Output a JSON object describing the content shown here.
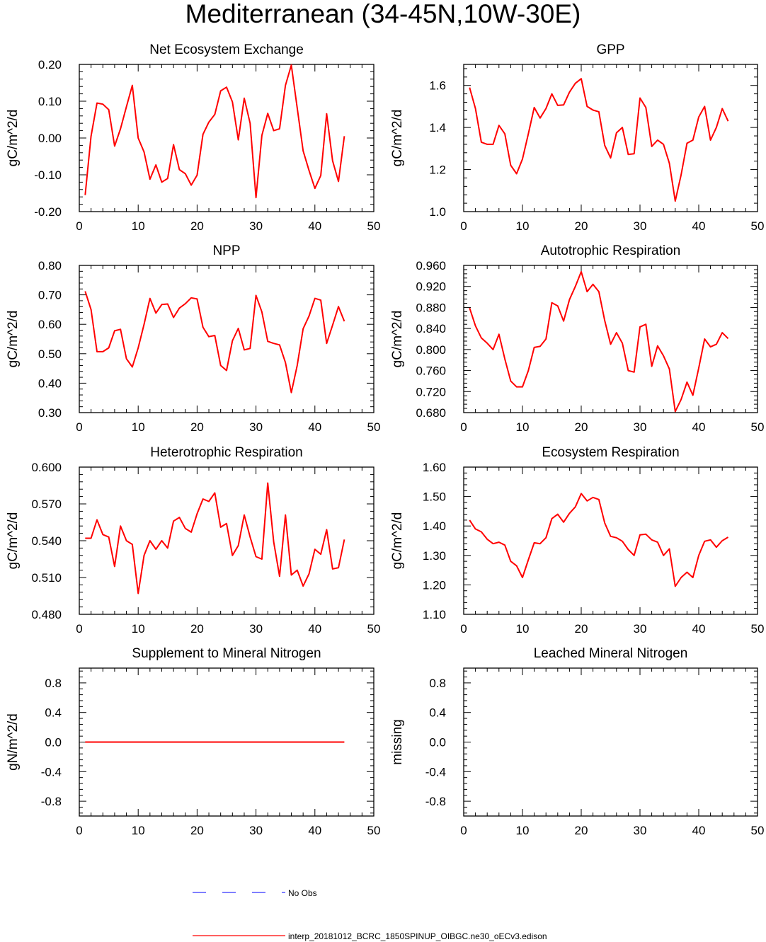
{
  "figure": {
    "title": "Mediterranean (34-45N,10W-30E)"
  },
  "legend": {
    "items": [
      {
        "label": "No Obs",
        "color": "#3333ff",
        "style": "dashed"
      },
      {
        "label": "interp_20181012_BCRC_1850SPINUP_OIBGC.ne30_oECv3.edison",
        "color": "#ff0000",
        "style": "solid"
      }
    ]
  },
  "chart_data": [
    {
      "type": "line",
      "title": "Net Ecosystem Exchange",
      "ylabel": "gC/m^2/d",
      "xlim": [
        0,
        50
      ],
      "ylim": [
        -0.2,
        0.2
      ],
      "xticks": [
        0,
        10,
        20,
        30,
        40,
        50
      ],
      "yticks": [
        -0.2,
        -0.1,
        0.0,
        0.1,
        0.2
      ],
      "ytick_labels": [
        "-0.20",
        "-0.10",
        "0.00",
        "0.10",
        "0.20"
      ],
      "series": [
        {
          "color": "#ff0000",
          "x": [
            1,
            2,
            3,
            4,
            5,
            6,
            7,
            8,
            9,
            10,
            11,
            12,
            13,
            14,
            15,
            16,
            17,
            18,
            19,
            20,
            21,
            22,
            23,
            24,
            25,
            26,
            27,
            28,
            29,
            30,
            31,
            32,
            33,
            34,
            35,
            36,
            37,
            38,
            39,
            40,
            41,
            42,
            43,
            44,
            45
          ],
          "y": [
            -0.155,
            0.005,
            0.095,
            0.092,
            0.077,
            -0.022,
            0.025,
            0.085,
            0.143,
            0.0,
            -0.038,
            -0.112,
            -0.073,
            -0.12,
            -0.11,
            -0.018,
            -0.086,
            -0.097,
            -0.128,
            -0.101,
            0.01,
            0.043,
            0.064,
            0.128,
            0.138,
            0.098,
            -0.005,
            0.108,
            0.04,
            -0.162,
            0.007,
            0.067,
            0.02,
            0.025,
            0.143,
            0.198,
            0.082,
            -0.035,
            -0.088,
            -0.137,
            -0.102,
            0.066,
            -0.062,
            -0.118,
            0.005
          ]
        }
      ]
    },
    {
      "type": "line",
      "title": "GPP",
      "ylabel": "gC/m^2/d",
      "xlim": [
        0,
        50
      ],
      "ylim": [
        1.0,
        1.7
      ],
      "xticks": [
        0,
        10,
        20,
        30,
        40,
        50
      ],
      "yticks": [
        1.0,
        1.2,
        1.4,
        1.6
      ],
      "ytick_labels": [
        "1.0",
        "1.2",
        "1.4",
        "1.6"
      ],
      "series": [
        {
          "color": "#ff0000",
          "x": [
            1,
            2,
            3,
            4,
            5,
            6,
            7,
            8,
            9,
            10,
            11,
            12,
            13,
            14,
            15,
            16,
            17,
            18,
            19,
            20,
            21,
            22,
            23,
            24,
            25,
            26,
            27,
            28,
            29,
            30,
            31,
            32,
            33,
            34,
            35,
            36,
            37,
            38,
            39,
            40,
            41,
            42,
            43,
            44,
            45
          ],
          "y": [
            1.59,
            1.49,
            1.33,
            1.32,
            1.32,
            1.41,
            1.37,
            1.22,
            1.18,
            1.25,
            1.37,
            1.495,
            1.445,
            1.49,
            1.56,
            1.505,
            1.507,
            1.568,
            1.61,
            1.632,
            1.5,
            1.483,
            1.475,
            1.315,
            1.255,
            1.375,
            1.4,
            1.272,
            1.275,
            1.54,
            1.495,
            1.31,
            1.34,
            1.32,
            1.23,
            1.05,
            1.175,
            1.325,
            1.34,
            1.45,
            1.5,
            1.34,
            1.4,
            1.49,
            1.43
          ]
        }
      ]
    },
    {
      "type": "line",
      "title": "NPP",
      "ylabel": "gC/m^2/d",
      "xlim": [
        0,
        50
      ],
      "ylim": [
        0.3,
        0.8
      ],
      "xticks": [
        0,
        10,
        20,
        30,
        40,
        50
      ],
      "yticks": [
        0.3,
        0.4,
        0.5,
        0.6,
        0.7,
        0.8
      ],
      "ytick_labels": [
        "0.30",
        "0.40",
        "0.50",
        "0.60",
        "0.70",
        "0.80"
      ],
      "series": [
        {
          "color": "#ff0000",
          "x": [
            1,
            2,
            3,
            4,
            5,
            6,
            7,
            8,
            9,
            10,
            11,
            12,
            13,
            14,
            15,
            16,
            17,
            18,
            19,
            20,
            21,
            22,
            23,
            24,
            25,
            26,
            27,
            28,
            29,
            30,
            31,
            32,
            33,
            34,
            35,
            36,
            37,
            38,
            39,
            40,
            41,
            42,
            43,
            44,
            45
          ],
          "y": [
            0.712,
            0.65,
            0.507,
            0.507,
            0.52,
            0.578,
            0.583,
            0.483,
            0.455,
            0.52,
            0.6,
            0.688,
            0.638,
            0.667,
            0.669,
            0.623,
            0.655,
            0.67,
            0.69,
            0.686,
            0.59,
            0.558,
            0.562,
            0.46,
            0.443,
            0.544,
            0.586,
            0.513,
            0.518,
            0.698,
            0.642,
            0.542,
            0.535,
            0.53,
            0.47,
            0.368,
            0.46,
            0.585,
            0.628,
            0.688,
            0.682,
            0.535,
            0.597,
            0.66,
            0.61
          ]
        }
      ]
    },
    {
      "type": "line",
      "title": "Autotrophic Respiration",
      "ylabel": "gC/m^2/d",
      "xlim": [
        0,
        50
      ],
      "ylim": [
        0.68,
        0.96
      ],
      "xticks": [
        0,
        10,
        20,
        30,
        40,
        50
      ],
      "yticks": [
        0.68,
        0.72,
        0.76,
        0.8,
        0.84,
        0.88,
        0.92,
        0.96
      ],
      "ytick_labels": [
        "0.680",
        "0.720",
        "0.760",
        "0.800",
        "0.840",
        "0.880",
        "0.920",
        "0.960"
      ],
      "series": [
        {
          "color": "#ff0000",
          "x": [
            1,
            2,
            3,
            4,
            5,
            6,
            7,
            8,
            9,
            10,
            11,
            12,
            13,
            14,
            15,
            16,
            17,
            18,
            19,
            20,
            21,
            22,
            23,
            24,
            25,
            26,
            27,
            28,
            29,
            30,
            31,
            32,
            33,
            34,
            35,
            36,
            37,
            38,
            39,
            40,
            41,
            42,
            43,
            44,
            45
          ],
          "y": [
            0.879,
            0.845,
            0.822,
            0.812,
            0.8,
            0.829,
            0.782,
            0.74,
            0.729,
            0.729,
            0.76,
            0.804,
            0.806,
            0.82,
            0.889,
            0.883,
            0.854,
            0.895,
            0.92,
            0.948,
            0.91,
            0.924,
            0.91,
            0.855,
            0.81,
            0.832,
            0.812,
            0.76,
            0.757,
            0.843,
            0.848,
            0.768,
            0.807,
            0.788,
            0.763,
            0.682,
            0.705,
            0.738,
            0.713,
            0.765,
            0.82,
            0.805,
            0.81,
            0.832,
            0.821
          ]
        }
      ]
    },
    {
      "type": "line",
      "title": "Heterotrophic Respiration",
      "ylabel": "gC/m^2/d",
      "xlim": [
        0,
        50
      ],
      "ylim": [
        0.48,
        0.6
      ],
      "xticks": [
        0,
        10,
        20,
        30,
        40,
        50
      ],
      "yticks": [
        0.48,
        0.51,
        0.54,
        0.57,
        0.6
      ],
      "ytick_labels": [
        "0.480",
        "0.510",
        "0.540",
        "0.570",
        "0.600"
      ],
      "series": [
        {
          "color": "#ff0000",
          "x": [
            1,
            2,
            3,
            4,
            5,
            6,
            7,
            8,
            9,
            10,
            11,
            12,
            13,
            14,
            15,
            16,
            17,
            18,
            19,
            20,
            21,
            22,
            23,
            24,
            25,
            26,
            27,
            28,
            29,
            30,
            31,
            32,
            33,
            34,
            35,
            36,
            37,
            38,
            39,
            40,
            41,
            42,
            43,
            44,
            45
          ],
          "y": [
            0.542,
            0.542,
            0.557,
            0.545,
            0.543,
            0.519,
            0.552,
            0.54,
            0.537,
            0.497,
            0.528,
            0.54,
            0.533,
            0.54,
            0.534,
            0.556,
            0.559,
            0.55,
            0.547,
            0.562,
            0.574,
            0.572,
            0.579,
            0.551,
            0.554,
            0.528,
            0.536,
            0.561,
            0.543,
            0.527,
            0.525,
            0.587,
            0.539,
            0.511,
            0.561,
            0.512,
            0.516,
            0.503,
            0.513,
            0.533,
            0.529,
            0.549,
            0.517,
            0.518,
            0.541
          ]
        }
      ]
    },
    {
      "type": "line",
      "title": "Ecosystem Respiration",
      "ylabel": "gC/m^2/d",
      "xlim": [
        0,
        50
      ],
      "ylim": [
        1.1,
        1.6
      ],
      "xticks": [
        0,
        10,
        20,
        30,
        40,
        50
      ],
      "yticks": [
        1.1,
        1.2,
        1.3,
        1.4,
        1.5,
        1.6
      ],
      "ytick_labels": [
        "1.10",
        "1.20",
        "1.30",
        "1.40",
        "1.50",
        "1.60"
      ],
      "series": [
        {
          "color": "#ff0000",
          "x": [
            1,
            2,
            3,
            4,
            5,
            6,
            7,
            8,
            9,
            10,
            11,
            12,
            13,
            14,
            15,
            16,
            17,
            18,
            19,
            20,
            21,
            22,
            23,
            24,
            25,
            26,
            27,
            28,
            29,
            30,
            31,
            32,
            33,
            34,
            35,
            36,
            37,
            38,
            39,
            40,
            41,
            42,
            43,
            44,
            45
          ],
          "y": [
            1.42,
            1.39,
            1.38,
            1.355,
            1.34,
            1.345,
            1.335,
            1.28,
            1.265,
            1.225,
            1.285,
            1.343,
            1.34,
            1.36,
            1.425,
            1.44,
            1.413,
            1.443,
            1.465,
            1.51,
            1.485,
            1.497,
            1.49,
            1.41,
            1.365,
            1.36,
            1.348,
            1.32,
            1.3,
            1.37,
            1.372,
            1.353,
            1.345,
            1.3,
            1.322,
            1.195,
            1.225,
            1.243,
            1.225,
            1.3,
            1.348,
            1.353,
            1.328,
            1.35,
            1.362
          ]
        }
      ]
    },
    {
      "type": "line",
      "title": "Supplement to Mineral Nitrogen",
      "ylabel": "gN/m^2/d",
      "xlim": [
        0,
        50
      ],
      "ylim": [
        -1.0,
        1.0
      ],
      "xticks": [
        0,
        10,
        20,
        30,
        40,
        50
      ],
      "yticks": [
        -0.8,
        -0.4,
        0.0,
        0.4,
        0.8
      ],
      "ytick_labels": [
        "-0.8",
        "-0.4",
        "0.0",
        "0.4",
        "0.8"
      ],
      "series": [
        {
          "color": "#ff0000",
          "x": [
            1,
            45
          ],
          "y": [
            0.0,
            0.0
          ]
        }
      ]
    },
    {
      "type": "line",
      "title": "Leached Mineral Nitrogen",
      "ylabel": "missing",
      "xlim": [
        0,
        50
      ],
      "ylim": [
        -1.0,
        1.0
      ],
      "xticks": [
        0,
        10,
        20,
        30,
        40,
        50
      ],
      "yticks": [
        -0.8,
        -0.4,
        0.0,
        0.4,
        0.8
      ],
      "ytick_labels": [
        "-0.8",
        "-0.4",
        "0.0",
        "0.4",
        "0.8"
      ],
      "series": []
    }
  ]
}
